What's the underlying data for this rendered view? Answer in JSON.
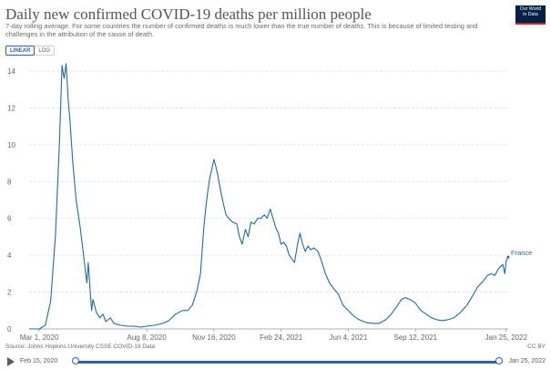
{
  "header": {
    "title": "Daily new confirmed COVID-19 deaths per million people",
    "subtitle": "7-day rolling average. For some countries the number of confirmed deaths is much lower than the true number of deaths. This is because of limited testing and challenges in the attribution of the cause of death.",
    "logo_line1": "Our World",
    "logo_line2": "in Data"
  },
  "scale_toggle": {
    "linear": "LINEAR",
    "log": "LOG",
    "selected": "LINEAR"
  },
  "footer": {
    "source": "Source: Johns Hopkins University CSSE COVID-19 Data",
    "license": "CC BY"
  },
  "timeline": {
    "start_label": "Feb 15, 2020",
    "end_label": "Jan 25, 2022"
  },
  "colors": {
    "line": "#1f6e9c",
    "grid": "#dddddd",
    "accent": "#3360a9"
  },
  "chart_data": {
    "type": "line",
    "title": "Daily new confirmed COVID-19 deaths per million people",
    "ylim": [
      0,
      14
    ],
    "yticks": [
      0,
      2,
      4,
      6,
      8,
      10,
      12,
      14
    ],
    "x_range": [
      "2020-02-15",
      "2022-01-28"
    ],
    "xticks": [
      {
        "date": "2020-03-01",
        "label": "Mar 1, 2020"
      },
      {
        "date": "2020-08-08",
        "label": "Aug 8, 2020"
      },
      {
        "date": "2020-11-16",
        "label": "Nov 16, 2020"
      },
      {
        "date": "2021-02-24",
        "label": "Feb 24, 2021"
      },
      {
        "date": "2021-06-04",
        "label": "Jun 4, 2021"
      },
      {
        "date": "2021-09-12",
        "label": "Sep 12, 2021"
      },
      {
        "date": "2022-01-25",
        "label": "Jan 25, 2022"
      }
    ],
    "grid": true,
    "series": [
      {
        "name": "France",
        "points": [
          [
            "2020-02-15",
            0
          ],
          [
            "2020-03-01",
            0
          ],
          [
            "2020-03-10",
            0.2
          ],
          [
            "2020-03-18",
            1.5
          ],
          [
            "2020-03-25",
            5.0
          ],
          [
            "2020-03-31",
            10.0
          ],
          [
            "2020-04-04",
            14.3
          ],
          [
            "2020-04-07",
            13.6
          ],
          [
            "2020-04-10",
            14.4
          ],
          [
            "2020-04-13",
            12.5
          ],
          [
            "2020-04-16",
            11.2
          ],
          [
            "2020-04-20",
            9.0
          ],
          [
            "2020-04-25",
            7.0
          ],
          [
            "2020-05-01",
            5.5
          ],
          [
            "2020-05-05",
            4.3
          ],
          [
            "2020-05-08",
            3.4
          ],
          [
            "2020-05-11",
            2.5
          ],
          [
            "2020-05-13",
            3.6
          ],
          [
            "2020-05-16",
            2.0
          ],
          [
            "2020-05-18",
            1.0
          ],
          [
            "2020-05-20",
            1.6
          ],
          [
            "2020-05-25",
            0.9
          ],
          [
            "2020-05-30",
            0.6
          ],
          [
            "2020-06-04",
            0.8
          ],
          [
            "2020-06-08",
            0.4
          ],
          [
            "2020-06-15",
            0.6
          ],
          [
            "2020-06-20",
            0.3
          ],
          [
            "2020-06-30",
            0.2
          ],
          [
            "2020-07-10",
            0.15
          ],
          [
            "2020-07-20",
            0.15
          ],
          [
            "2020-07-30",
            0.1
          ],
          [
            "2020-08-08",
            0.15
          ],
          [
            "2020-08-20",
            0.2
          ],
          [
            "2020-09-01",
            0.3
          ],
          [
            "2020-09-10",
            0.45
          ],
          [
            "2020-09-20",
            0.8
          ],
          [
            "2020-09-30",
            1.0
          ],
          [
            "2020-10-08",
            1.0
          ],
          [
            "2020-10-15",
            1.3
          ],
          [
            "2020-10-22",
            2.1
          ],
          [
            "2020-10-27",
            3.0
          ],
          [
            "2020-11-01",
            5.5
          ],
          [
            "2020-11-04",
            6.6
          ],
          [
            "2020-11-07",
            7.5
          ],
          [
            "2020-11-10",
            8.2
          ],
          [
            "2020-11-13",
            8.7
          ],
          [
            "2020-11-16",
            9.2
          ],
          [
            "2020-11-19",
            8.8
          ],
          [
            "2020-11-22",
            8.3
          ],
          [
            "2020-11-26",
            7.5
          ],
          [
            "2020-11-30",
            6.8
          ],
          [
            "2020-12-04",
            6.2
          ],
          [
            "2020-12-08",
            6.0
          ],
          [
            "2020-12-14",
            5.8
          ],
          [
            "2020-12-20",
            5.7
          ],
          [
            "2020-12-24",
            5.0
          ],
          [
            "2020-12-28",
            4.6
          ],
          [
            "2021-01-02",
            5.4
          ],
          [
            "2021-01-06",
            5.0
          ],
          [
            "2021-01-10",
            5.8
          ],
          [
            "2021-01-15",
            5.7
          ],
          [
            "2021-01-20",
            6.0
          ],
          [
            "2021-01-25",
            6.0
          ],
          [
            "2021-01-30",
            6.2
          ],
          [
            "2021-02-03",
            6.0
          ],
          [
            "2021-02-08",
            6.5
          ],
          [
            "2021-02-12",
            6.0
          ],
          [
            "2021-02-16",
            5.5
          ],
          [
            "2021-02-20",
            5.2
          ],
          [
            "2021-02-24",
            4.6
          ],
          [
            "2021-02-28",
            4.7
          ],
          [
            "2021-03-04",
            4.5
          ],
          [
            "2021-03-08",
            4.0
          ],
          [
            "2021-03-12",
            3.8
          ],
          [
            "2021-03-16",
            3.6
          ],
          [
            "2021-03-20",
            4.5
          ],
          [
            "2021-03-24",
            5.2
          ],
          [
            "2021-03-28",
            4.6
          ],
          [
            "2021-04-01",
            4.2
          ],
          [
            "2021-04-05",
            4.5
          ],
          [
            "2021-04-09",
            4.3
          ],
          [
            "2021-04-14",
            4.4
          ],
          [
            "2021-04-20",
            4.2
          ],
          [
            "2021-04-25",
            3.7
          ],
          [
            "2021-05-01",
            3.0
          ],
          [
            "2021-05-07",
            2.5
          ],
          [
            "2021-05-13",
            2.2
          ],
          [
            "2021-05-20",
            1.9
          ],
          [
            "2021-05-27",
            1.3
          ],
          [
            "2021-06-04",
            1.0
          ],
          [
            "2021-06-12",
            0.7
          ],
          [
            "2021-06-20",
            0.5
          ],
          [
            "2021-06-30",
            0.35
          ],
          [
            "2021-07-10",
            0.3
          ],
          [
            "2021-07-20",
            0.3
          ],
          [
            "2021-07-30",
            0.5
          ],
          [
            "2021-08-07",
            0.8
          ],
          [
            "2021-08-15",
            1.2
          ],
          [
            "2021-08-22",
            1.6
          ],
          [
            "2021-08-28",
            1.7
          ],
          [
            "2021-09-04",
            1.6
          ],
          [
            "2021-09-12",
            1.4
          ],
          [
            "2021-09-20",
            1.0
          ],
          [
            "2021-09-28",
            0.8
          ],
          [
            "2021-10-06",
            0.6
          ],
          [
            "2021-10-14",
            0.5
          ],
          [
            "2021-10-22",
            0.45
          ],
          [
            "2021-10-30",
            0.5
          ],
          [
            "2021-11-08",
            0.6
          ],
          [
            "2021-11-18",
            0.9
          ],
          [
            "2021-11-28",
            1.3
          ],
          [
            "2021-12-06",
            1.8
          ],
          [
            "2021-12-14",
            2.3
          ],
          [
            "2021-12-22",
            2.6
          ],
          [
            "2021-12-28",
            2.9
          ],
          [
            "2022-01-03",
            3.0
          ],
          [
            "2022-01-08",
            2.9
          ],
          [
            "2022-01-14",
            3.3
          ],
          [
            "2022-01-20",
            3.5
          ],
          [
            "2022-01-23",
            3.0
          ],
          [
            "2022-01-25",
            3.7
          ],
          [
            "2022-01-28",
            3.9
          ]
        ]
      }
    ]
  }
}
